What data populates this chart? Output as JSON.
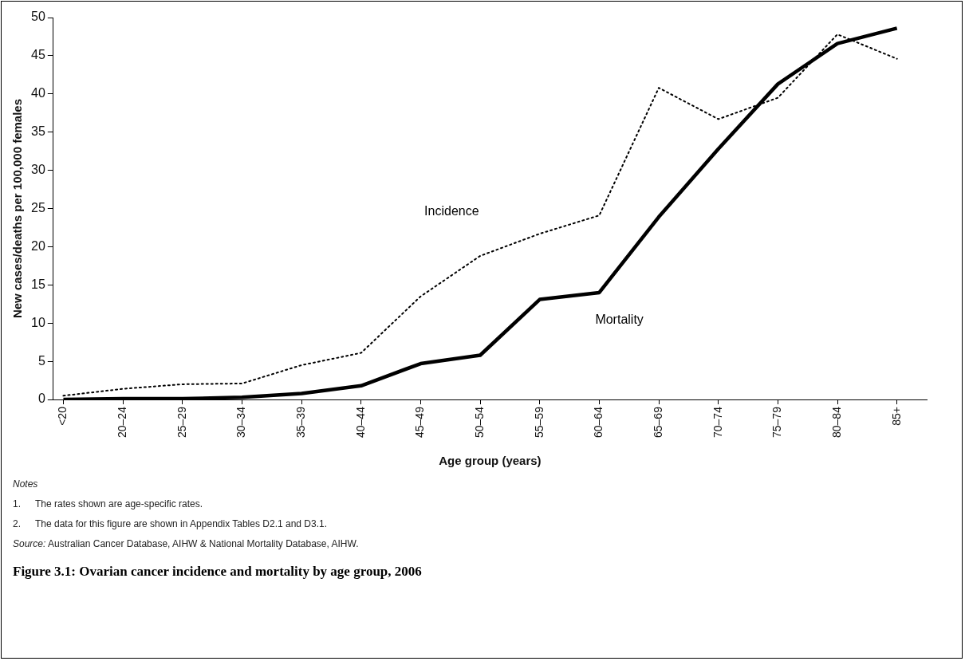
{
  "chart_data": {
    "type": "line",
    "title": "Figure 3.1: Ovarian cancer incidence and mortality by age group, 2006",
    "xlabel": "Age group (years)",
    "ylabel": "New cases/deaths per 100,000 females",
    "categories": [
      "<20",
      "20–24",
      "25–29",
      "30–34",
      "35–39",
      "40–44",
      "45–49",
      "50–54",
      "55–59",
      "60–64",
      "65–69",
      "70–74",
      "75–79",
      "80–84",
      "85+"
    ],
    "series": [
      {
        "name": "Incidence",
        "color": "#000000",
        "line_style": "dotted",
        "values": [
          0.5,
          1.4,
          2.0,
          2.1,
          4.5,
          6.1,
          13.5,
          18.8,
          21.7,
          24.1,
          40.8,
          36.7,
          39.5,
          47.8,
          44.6
        ]
      },
      {
        "name": "Mortality",
        "color": "#000000",
        "line_style": "solid",
        "values": [
          0.0,
          0.1,
          0.1,
          0.3,
          0.8,
          1.8,
          4.7,
          5.8,
          13.1,
          14.0,
          23.9,
          32.8,
          41.3,
          46.6,
          48.6
        ]
      }
    ],
    "ylim": [
      0,
      50
    ],
    "yticks": [
      0,
      5,
      10,
      15,
      20,
      25,
      30,
      35,
      40,
      45,
      50
    ],
    "grid": false,
    "legend": false,
    "marker": "none",
    "annotations": [
      "Notes",
      "1.\tThe rates shown are age-specific rates.",
      "2.\tThe data for this figure are shown in Appendix Tables D2.1 and D3.1.",
      "Source: Australian Cancer Database, AIHW & National Mortality Database, AIHW."
    ]
  }
}
